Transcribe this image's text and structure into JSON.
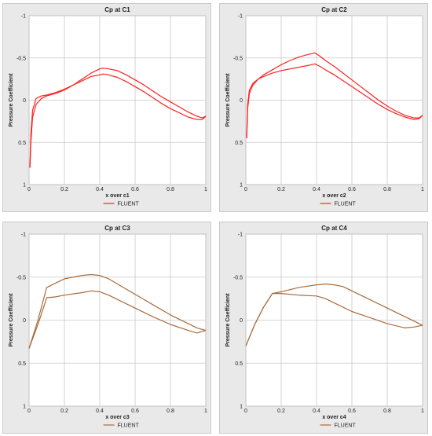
{
  "chart_data": [
    {
      "type": "line",
      "title": "Cp at C1",
      "xlabel": "x over c1",
      "ylabel": "Pressure Coefficient",
      "xlim": [
        0,
        1
      ],
      "ylim": [
        1,
        -1
      ],
      "y_inverted": true,
      "x_ticks": [
        "0",
        "0.2",
        "0.4",
        "0.6",
        "0.8",
        "1"
      ],
      "y_ticks": [
        "-1",
        "-0.5",
        "0",
        "0.5",
        "1"
      ],
      "grid": true,
      "legend": "bottom-center",
      "color": "#ff2020",
      "series": [
        {
          "name": "FLUENT",
          "x": [
            0.005,
            0.01,
            0.02,
            0.04,
            0.07,
            0.1,
            0.15,
            0.2,
            0.25,
            0.3,
            0.35,
            0.4,
            0.42,
            0.45,
            0.5,
            0.55,
            0.6,
            0.65,
            0.7,
            0.75,
            0.8,
            0.85,
            0.9,
            0.95,
            0.98,
            1.0
          ],
          "y": [
            0.8,
            0.5,
            0.2,
            0.05,
            -0.02,
            -0.05,
            -0.08,
            -0.12,
            -0.18,
            -0.25,
            -0.32,
            -0.37,
            -0.38,
            -0.37,
            -0.35,
            -0.3,
            -0.24,
            -0.18,
            -0.11,
            -0.04,
            0.02,
            0.08,
            0.14,
            0.19,
            0.21,
            0.19
          ]
        },
        {
          "name": "",
          "x": [
            0.005,
            0.01,
            0.02,
            0.04,
            0.07,
            0.1,
            0.15,
            0.2,
            0.25,
            0.3,
            0.35,
            0.4,
            0.42,
            0.45,
            0.5,
            0.55,
            0.6,
            0.65,
            0.7,
            0.75,
            0.8,
            0.85,
            0.9,
            0.95,
            0.98,
            1.0
          ],
          "y": [
            0.8,
            0.4,
            0.12,
            -0.02,
            -0.05,
            -0.06,
            -0.09,
            -0.13,
            -0.18,
            -0.23,
            -0.28,
            -0.3,
            -0.31,
            -0.3,
            -0.27,
            -0.22,
            -0.16,
            -0.1,
            -0.03,
            0.04,
            0.1,
            0.15,
            0.2,
            0.23,
            0.23,
            0.19
          ]
        }
      ]
    },
    {
      "type": "line",
      "title": "Cp at C2",
      "xlabel": "x over c2",
      "ylabel": "Pressure Coefficient",
      "xlim": [
        0,
        1
      ],
      "ylim": [
        1,
        -1
      ],
      "y_inverted": true,
      "x_ticks": [
        "0",
        "0.2",
        "0.4",
        "0.6",
        "0.8",
        "1"
      ],
      "y_ticks": [
        "-1",
        "-0.5",
        "0",
        "0.5",
        "1"
      ],
      "grid": true,
      "legend": "bottom-center",
      "color": "#ff2020",
      "series": [
        {
          "name": "FLUENT",
          "x": [
            0.005,
            0.01,
            0.02,
            0.04,
            0.07,
            0.1,
            0.15,
            0.2,
            0.25,
            0.3,
            0.35,
            0.39,
            0.42,
            0.45,
            0.5,
            0.55,
            0.6,
            0.65,
            0.7,
            0.75,
            0.8,
            0.85,
            0.9,
            0.95,
            0.98,
            1.0
          ],
          "y": [
            0.45,
            0.1,
            -0.08,
            -0.18,
            -0.25,
            -0.3,
            -0.36,
            -0.42,
            -0.47,
            -0.51,
            -0.54,
            -0.56,
            -0.52,
            -0.47,
            -0.4,
            -0.32,
            -0.24,
            -0.16,
            -0.08,
            0.0,
            0.07,
            0.13,
            0.18,
            0.21,
            0.21,
            0.18
          ]
        },
        {
          "name": "",
          "x": [
            0.005,
            0.01,
            0.02,
            0.04,
            0.07,
            0.1,
            0.15,
            0.2,
            0.25,
            0.3,
            0.35,
            0.39,
            0.42,
            0.45,
            0.5,
            0.55,
            0.6,
            0.65,
            0.7,
            0.75,
            0.8,
            0.85,
            0.9,
            0.95,
            0.98,
            1.0
          ],
          "y": [
            0.45,
            0.05,
            -0.12,
            -0.2,
            -0.25,
            -0.28,
            -0.32,
            -0.35,
            -0.37,
            -0.39,
            -0.41,
            -0.43,
            -0.4,
            -0.36,
            -0.3,
            -0.23,
            -0.16,
            -0.09,
            -0.02,
            0.05,
            0.11,
            0.16,
            0.2,
            0.23,
            0.22,
            0.18
          ]
        }
      ]
    },
    {
      "type": "line",
      "title": "Cp at C3",
      "xlabel": "x over c3",
      "ylabel": "Pressure Coefficient",
      "xlim": [
        0,
        1
      ],
      "ylim": [
        1,
        -1
      ],
      "y_inverted": true,
      "x_ticks": [
        "0",
        "0.2",
        "0.4",
        "0.6",
        "0.8",
        "1"
      ],
      "y_ticks": [
        "-1",
        "-0.5",
        "0",
        "0.5",
        "1"
      ],
      "grid": true,
      "legend": "bottom-center",
      "color": "#a86b3c",
      "series": [
        {
          "name": "FLUENT",
          "x": [
            0.0,
            0.05,
            0.1,
            0.2,
            0.3,
            0.35,
            0.4,
            0.45,
            0.5,
            0.6,
            0.7,
            0.8,
            0.9,
            0.95,
            1.0
          ],
          "y": [
            0.33,
            0.0,
            -0.38,
            -0.48,
            -0.52,
            -0.53,
            -0.52,
            -0.48,
            -0.42,
            -0.3,
            -0.18,
            -0.06,
            0.04,
            0.09,
            0.12
          ],
          "color": "#a86b3c"
        },
        {
          "name": "",
          "x": [
            0.0,
            0.05,
            0.1,
            0.15,
            0.2,
            0.3,
            0.35,
            0.4,
            0.45,
            0.5,
            0.6,
            0.7,
            0.8,
            0.9,
            0.95,
            1.0
          ],
          "y": [
            0.33,
            0.05,
            -0.26,
            -0.27,
            -0.29,
            -0.32,
            -0.34,
            -0.33,
            -0.29,
            -0.24,
            -0.14,
            -0.04,
            0.05,
            0.12,
            0.15,
            0.12
          ],
          "color": "#a86b3c"
        }
      ]
    },
    {
      "type": "line",
      "title": "Cp at C4",
      "xlabel": "x over c4",
      "ylabel": "Pressure Coefficient",
      "xlim": [
        0,
        1
      ],
      "ylim": [
        1,
        -1
      ],
      "y_inverted": true,
      "x_ticks": [
        "0",
        "0.2",
        "0.4",
        "0.6",
        "0.8",
        "1"
      ],
      "y_ticks": [
        "-1",
        "-0.5",
        "0",
        "0.5",
        "1"
      ],
      "grid": true,
      "legend": "bottom-center",
      "color": "#a86b3c",
      "series": [
        {
          "name": "FLUENT",
          "x": [
            0.0,
            0.05,
            0.1,
            0.15,
            0.2,
            0.3,
            0.4,
            0.45,
            0.5,
            0.55,
            0.6,
            0.7,
            0.8,
            0.9,
            0.95,
            1.0
          ],
          "y": [
            0.3,
            0.05,
            -0.15,
            -0.31,
            -0.33,
            -0.38,
            -0.41,
            -0.42,
            -0.41,
            -0.39,
            -0.34,
            -0.24,
            -0.14,
            -0.04,
            0.01,
            0.06
          ],
          "color": "#a86b3c"
        },
        {
          "name": "",
          "x": [
            0.0,
            0.05,
            0.1,
            0.15,
            0.2,
            0.3,
            0.4,
            0.45,
            0.5,
            0.55,
            0.6,
            0.7,
            0.8,
            0.9,
            0.95,
            1.0
          ],
          "y": [
            0.3,
            0.05,
            -0.15,
            -0.31,
            -0.31,
            -0.29,
            -0.28,
            -0.25,
            -0.2,
            -0.15,
            -0.1,
            -0.03,
            0.04,
            0.09,
            0.08,
            0.06
          ],
          "color": "#a86b3c"
        }
      ]
    }
  ]
}
